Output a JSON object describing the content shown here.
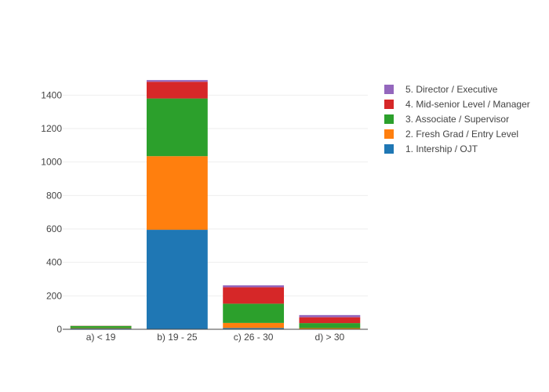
{
  "chart_data": {
    "type": "bar",
    "stacked": true,
    "categories": [
      "a) < 19",
      "b) 19 - 25",
      "c) 26 - 30",
      "d) > 30"
    ],
    "series": [
      {
        "name": "1. Intership / OJT",
        "color": "#1f77b4",
        "values": [
          5,
          595,
          8,
          2
        ]
      },
      {
        "name": "2. Fresh Grad / Entry Level",
        "color": "#ff7f0e",
        "values": [
          2,
          440,
          30,
          5
        ]
      },
      {
        "name": "3. Associate / Supervisor",
        "color": "#2ca02c",
        "values": [
          13,
          345,
          115,
          30
        ]
      },
      {
        "name": "4. Mid-senior Level / Manager",
        "color": "#d62728",
        "values": [
          1,
          100,
          98,
          35
        ]
      },
      {
        "name": "5. Director / Executive",
        "color": "#9467bd",
        "values": [
          0,
          10,
          12,
          13
        ]
      }
    ],
    "ylim": [
      0,
      1500
    ],
    "yticks": [
      0,
      200,
      400,
      600,
      800,
      1000,
      1200,
      1400
    ],
    "grid": true,
    "legend_position": "top-right"
  }
}
